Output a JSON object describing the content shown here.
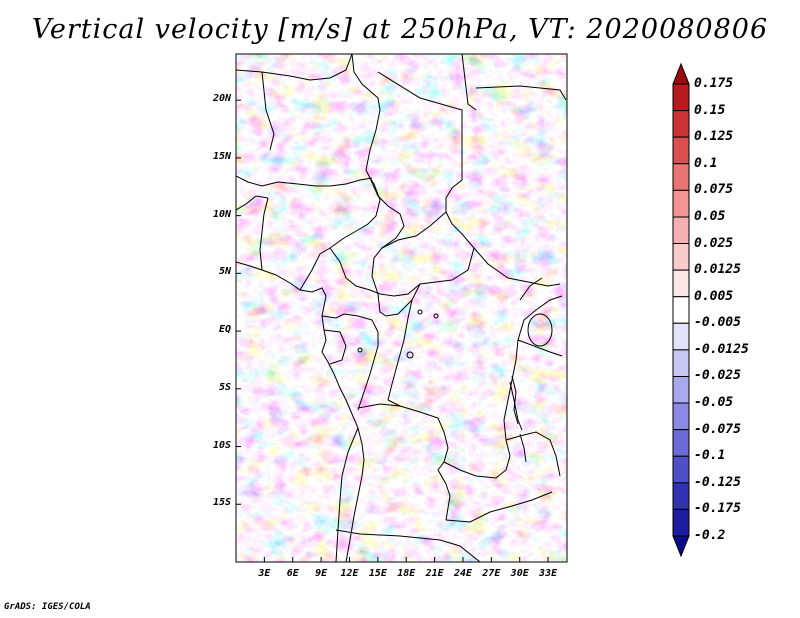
{
  "title": "Vertical velocity [m/s] at 250hPa, VT: 2020080806",
  "footer": "GrADS: IGES/COLA",
  "map": {
    "lat_range": [
      -20,
      24
    ],
    "lon_range": [
      0,
      35
    ],
    "lat_ticks": [
      "20N",
      "15N",
      "10N",
      "5N",
      "EQ",
      "5S",
      "10S",
      "15S"
    ],
    "lat_values": [
      20,
      15,
      10,
      5,
      0,
      -5,
      -10,
      -15
    ],
    "lon_ticks": [
      "3E",
      "6E",
      "9E",
      "12E",
      "15E",
      "18E",
      "21E",
      "24E",
      "27E",
      "30E",
      "33E"
    ],
    "lon_values": [
      3,
      6,
      9,
      12,
      15,
      18,
      21,
      24,
      27,
      30,
      33
    ]
  },
  "colorbar": {
    "labels": [
      "0.175",
      "0.15",
      "0.125",
      "0.1",
      "0.075",
      "0.05",
      "0.025",
      "0.0125",
      "0.005",
      "-0.005",
      "-0.0125",
      "-0.025",
      "-0.05",
      "-0.075",
      "-0.1",
      "-0.125",
      "-0.175",
      "-0.2"
    ],
    "colors": [
      "#9e0a0a",
      "#b71c1c",
      "#cc3333",
      "#dc4f4f",
      "#e87474",
      "#f09494",
      "#f5b1b1",
      "#f9cccc",
      "#fce6e6",
      "#ffffff",
      "#e2e2fa",
      "#c7c7f4",
      "#a8a8ee",
      "#8a8ae4",
      "#6b6bd8",
      "#4f4fc8",
      "#3232b4",
      "#1c1ca0",
      "#0a0a8c"
    ]
  },
  "colors": {
    "positive": "#e8675f",
    "negative": "#6a6ae6",
    "neutral": "#ffffff",
    "border": "#000000"
  }
}
